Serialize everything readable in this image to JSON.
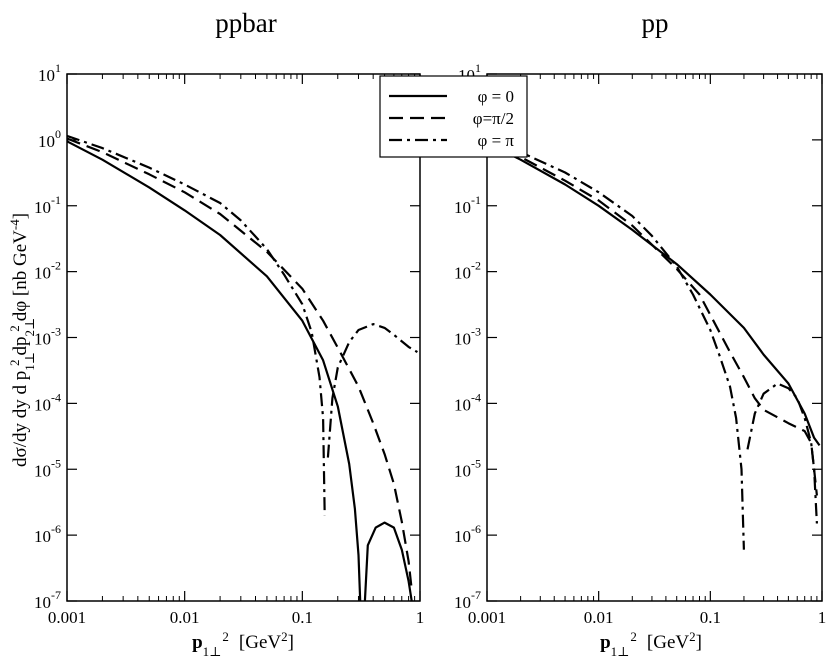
{
  "chart_data": [
    {
      "type": "line",
      "title": "ppbar",
      "xscale": "log",
      "yscale": "log",
      "xlim": [
        0.001,
        1
      ],
      "ylim": [
        1e-07,
        10
      ],
      "xticks": [
        {
          "v": 0.001,
          "label": "0.001"
        },
        {
          "v": 0.01,
          "label": "0.01"
        },
        {
          "v": 0.1,
          "label": "0.1"
        },
        {
          "v": 1,
          "label": "1"
        }
      ],
      "yticks": [
        {
          "v": 10.0,
          "base": "10",
          "exp": "1"
        },
        {
          "v": 1.0,
          "base": "10",
          "exp": "0"
        },
        {
          "v": 0.1,
          "base": "10",
          "exp": "-1"
        },
        {
          "v": 0.01,
          "base": "10",
          "exp": "-2"
        },
        {
          "v": 0.001,
          "base": "10",
          "exp": "-3"
        },
        {
          "v": 0.0001,
          "base": "10",
          "exp": "-4"
        },
        {
          "v": 1e-05,
          "base": "10",
          "exp": "-5"
        },
        {
          "v": 1e-06,
          "base": "10",
          "exp": "-6"
        },
        {
          "v": 1e-07,
          "base": "10",
          "exp": "-7"
        }
      ],
      "xlabel": {
        "main": "p",
        "sub": "1⊥",
        "sup": "2",
        "unit": "[GeV",
        "unit_sup": "2",
        "unit_end": "]"
      },
      "series": [
        {
          "name": "φ = 0",
          "style": "solid",
          "segments": [
            [
              [
                0.001,
                0.95
              ],
              [
                0.002,
                0.5
              ],
              [
                0.005,
                0.19
              ],
              [
                0.01,
                0.085
              ],
              [
                0.02,
                0.036
              ],
              [
                0.05,
                0.0085
              ],
              [
                0.1,
                0.0018
              ],
              [
                0.15,
                0.00045
              ],
              [
                0.2,
                9e-05
              ],
              [
                0.25,
                1.2e-05
              ],
              [
                0.28,
                2.5e-06
              ],
              [
                0.3,
                5e-07
              ],
              [
                0.31,
                1e-07
              ]
            ],
            [
              [
                0.34,
                1e-07
              ],
              [
                0.36,
                7e-07
              ],
              [
                0.42,
                1.3e-06
              ],
              [
                0.5,
                1.55e-06
              ],
              [
                0.6,
                1.3e-06
              ],
              [
                0.7,
                6e-07
              ],
              [
                0.8,
                2e-07
              ],
              [
                0.85,
                1e-07
              ]
            ]
          ]
        },
        {
          "name": "φ=π/2",
          "style": "dashed",
          "segments": [
            [
              [
                0.001,
                1.05
              ],
              [
                0.002,
                0.65
              ],
              [
                0.005,
                0.3
              ],
              [
                0.01,
                0.16
              ],
              [
                0.02,
                0.075
              ],
              [
                0.05,
                0.02
              ],
              [
                0.1,
                0.0055
              ],
              [
                0.15,
                0.0018
              ],
              [
                0.2,
                0.0007
              ],
              [
                0.3,
                0.00018
              ],
              [
                0.4,
                5e-05
              ],
              [
                0.5,
                1.7e-05
              ],
              [
                0.6,
                6e-06
              ],
              [
                0.7,
                1.6e-06
              ],
              [
                0.8,
                4e-07
              ],
              [
                0.85,
                1.5e-07
              ]
            ]
          ]
        },
        {
          "name": "φ = π",
          "style": "dashdot",
          "segments": [
            [
              [
                0.001,
                1.15
              ],
              [
                0.002,
                0.75
              ],
              [
                0.005,
                0.38
              ],
              [
                0.01,
                0.21
              ],
              [
                0.02,
                0.11
              ],
              [
                0.03,
                0.06
              ],
              [
                0.05,
                0.022
              ],
              [
                0.07,
                0.009
              ],
              [
                0.1,
                0.0032
              ],
              [
                0.12,
                0.0012
              ],
              [
                0.14,
                0.00025
              ],
              [
                0.15,
                6e-05
              ],
              [
                0.155,
                2e-06
              ]
            ],
            [
              [
                0.165,
                1.5e-05
              ],
              [
                0.18,
                0.00012
              ],
              [
                0.2,
                0.00035
              ],
              [
                0.25,
                0.00085
              ],
              [
                0.3,
                0.0013
              ],
              [
                0.4,
                0.0016
              ],
              [
                0.5,
                0.0014
              ],
              [
                0.6,
                0.0011
              ],
              [
                0.8,
                0.00072
              ],
              [
                0.95,
                0.0006
              ]
            ]
          ]
        }
      ]
    },
    {
      "type": "line",
      "title": "pp",
      "xscale": "log",
      "yscale": "log",
      "xlim": [
        0.001,
        1
      ],
      "ylim": [
        1e-07,
        10
      ],
      "xticks": [
        {
          "v": 0.001,
          "label": "0.001"
        },
        {
          "v": 0.01,
          "label": "0.01"
        },
        {
          "v": 0.1,
          "label": "0.1"
        },
        {
          "v": 1,
          "label": "1"
        }
      ],
      "yticks": [
        {
          "v": 10.0,
          "base": "10",
          "exp": "1"
        },
        {
          "v": 1.0,
          "base": "10",
          "exp": "0"
        },
        {
          "v": 0.1,
          "base": "10",
          "exp": "-1"
        },
        {
          "v": 0.01,
          "base": "10",
          "exp": "-2"
        },
        {
          "v": 0.001,
          "base": "10",
          "exp": "-3"
        },
        {
          "v": 0.0001,
          "base": "10",
          "exp": "-4"
        },
        {
          "v": 1e-05,
          "base": "10",
          "exp": "-5"
        },
        {
          "v": 1e-06,
          "base": "10",
          "exp": "-6"
        },
        {
          "v": 1e-07,
          "base": "10",
          "exp": "-7"
        }
      ],
      "xlabel": {
        "main": "p",
        "sub": "1⊥",
        "sup": "2",
        "unit": "[GeV",
        "unit_sup": "2",
        "unit_end": "]"
      },
      "series": [
        {
          "name": "φ = 0",
          "style": "solid",
          "segments": [
            [
              [
                0.001,
                0.9
              ],
              [
                0.002,
                0.5
              ],
              [
                0.005,
                0.21
              ],
              [
                0.01,
                0.1
              ],
              [
                0.02,
                0.043
              ],
              [
                0.05,
                0.013
              ],
              [
                0.1,
                0.0045
              ],
              [
                0.2,
                0.0014
              ],
              [
                0.3,
                0.00055
              ],
              [
                0.5,
                0.0002
              ],
              [
                0.7,
                7e-05
              ],
              [
                0.85,
                3e-05
              ],
              [
                0.95,
                2.3e-05
              ]
            ]
          ]
        },
        {
          "name": "φ=π/2",
          "style": "dashed",
          "segments": [
            [
              [
                0.001,
                1.0
              ],
              [
                0.002,
                0.55
              ],
              [
                0.005,
                0.24
              ],
              [
                0.01,
                0.12
              ],
              [
                0.02,
                0.05
              ],
              [
                0.05,
                0.011
              ],
              [
                0.08,
                0.0045
              ],
              [
                0.1,
                0.0022
              ],
              [
                0.15,
                0.0006
              ],
              [
                0.2,
                0.00025
              ],
              [
                0.25,
                0.00012
              ],
              [
                0.3,
                8e-05
              ],
              [
                0.5,
                5e-05
              ],
              [
                0.7,
                3.8e-05
              ],
              [
                0.8,
                2.5e-05
              ],
              [
                0.85,
                1e-05
              ],
              [
                0.9,
                4e-06
              ]
            ]
          ]
        },
        {
          "name": "φ = π",
          "style": "dashdot",
          "segments": [
            [
              [
                0.001,
                1.1
              ],
              [
                0.002,
                0.65
              ],
              [
                0.005,
                0.32
              ],
              [
                0.01,
                0.16
              ],
              [
                0.02,
                0.07
              ],
              [
                0.03,
                0.035
              ],
              [
                0.05,
                0.012
              ],
              [
                0.07,
                0.0045
              ],
              [
                0.1,
                0.0013
              ],
              [
                0.12,
                0.00055
              ],
              [
                0.15,
                0.00018
              ],
              [
                0.17,
                6e-05
              ],
              [
                0.19,
                1e-05
              ],
              [
                0.2,
                6e-07
              ]
            ],
            [
              [
                0.215,
                2e-05
              ],
              [
                0.25,
                7e-05
              ],
              [
                0.3,
                0.00014
              ],
              [
                0.4,
                0.0002
              ],
              [
                0.5,
                0.00017
              ],
              [
                0.6,
                0.00012
              ],
              [
                0.7,
                6e-05
              ],
              [
                0.8,
                2.5e-05
              ],
              [
                0.85,
                1e-05
              ],
              [
                0.9,
                1.5e-06
              ]
            ]
          ]
        }
      ]
    }
  ],
  "ylabel": {
    "pre": "dσ/dy dy d p",
    "sub1": "1⊥",
    "sup1": "2",
    "mid": "dp",
    "sub2": "2⊥",
    "sup2": "2",
    "post": "dφ [nb GeV",
    "sup3": "-4",
    "end": "]"
  },
  "legend": {
    "position": "top-center",
    "entries": [
      {
        "label": "φ = 0",
        "style": "solid"
      },
      {
        "label": "φ=π/2",
        "style": "dashed"
      },
      {
        "label": "φ = π",
        "style": "dashdot"
      }
    ]
  }
}
